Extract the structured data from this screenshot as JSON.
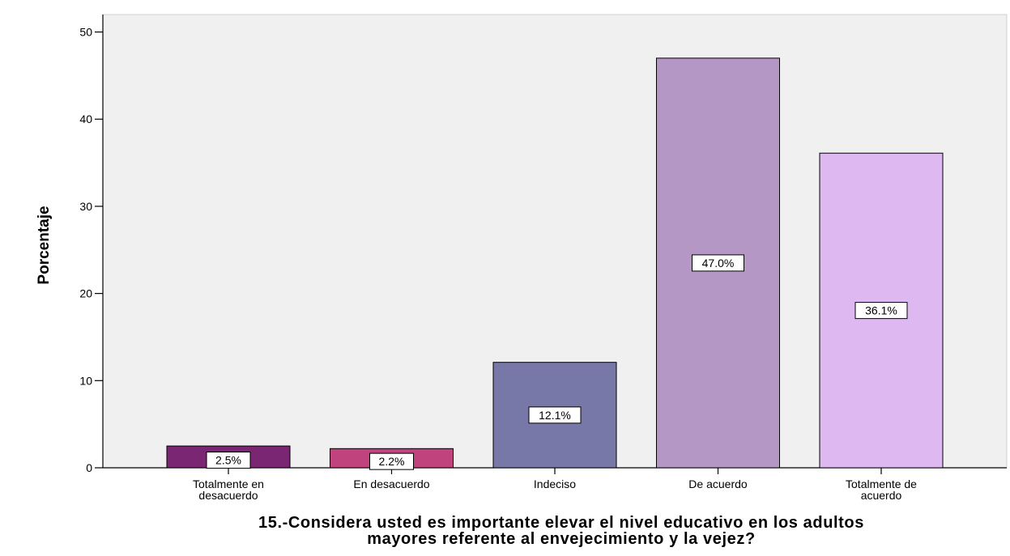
{
  "chart_data": {
    "type": "bar",
    "categories": [
      [
        "Totalmente en",
        "desacuerdo"
      ],
      [
        "En desacuerdo"
      ],
      [
        "Indeciso"
      ],
      [
        "De acuerdo"
      ],
      [
        "Totalmente de",
        "acuerdo"
      ]
    ],
    "values": [
      2.5,
      2.2,
      12.1,
      47.0,
      36.1
    ],
    "data_labels": [
      "2.5%",
      "2.2%",
      "12.1%",
      "47.0%",
      "36.1%"
    ],
    "colors": [
      "#7b2673",
      "#c0437d",
      "#7878a8",
      "#b597c6",
      "#deb8f0"
    ],
    "ylabel": "Porcentaje",
    "xlabel": [
      "15.-Considera usted es importante elevar el nivel educativo en los adultos",
      "mayores referente al envejecimiento y la vejez?"
    ],
    "ylim": [
      0,
      52
    ],
    "yticks": [
      0,
      10,
      20,
      30,
      40,
      50
    ],
    "grid": false,
    "legend": "none",
    "plot_background": "#f0f0f0"
  }
}
